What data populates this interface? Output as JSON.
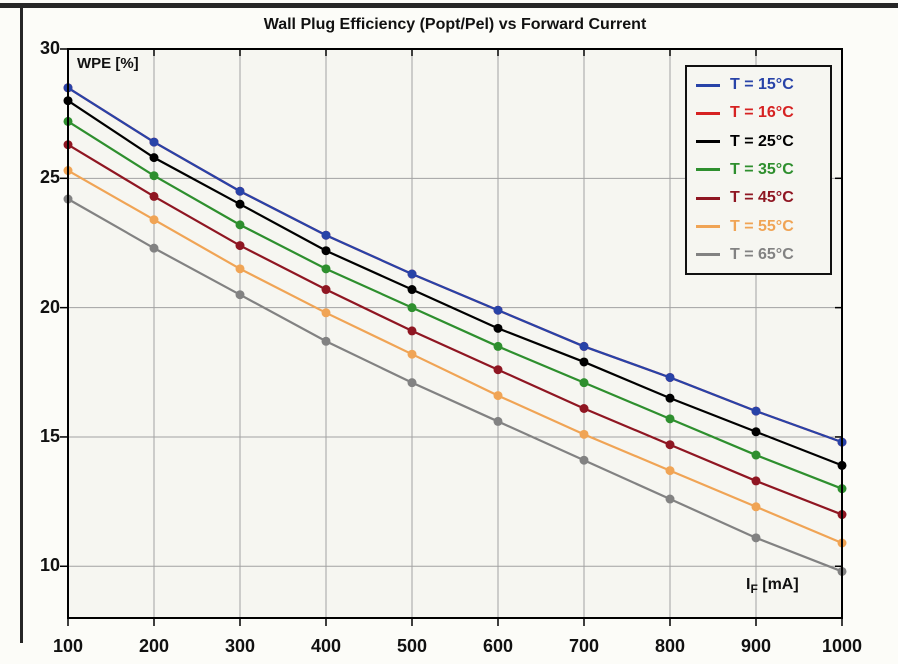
{
  "figure": {
    "title": "Wall Plug Efficiency (Popt/Pel) vs Forward Current",
    "ylabel_inplot": "WPE [%]",
    "xlabel_inplot": {
      "main": "I",
      "sub": "F",
      "unit": " [mA]"
    }
  },
  "chart_data": {
    "type": "line",
    "title": "Wall Plug Efficiency (Popt/Pel) vs Forward Current",
    "xlabel": "IF [mA]",
    "ylabel": "WPE [%]",
    "x": [
      100,
      200,
      300,
      400,
      500,
      600,
      700,
      800,
      900,
      1000
    ],
    "xlim": [
      100,
      1000
    ],
    "ylim": [
      8,
      30
    ],
    "xticks": [
      100,
      200,
      300,
      400,
      500,
      600,
      700,
      800,
      900,
      1000
    ],
    "yticks": [
      10,
      15,
      20,
      25,
      30
    ],
    "grid": true,
    "legend_position": "top-right",
    "plot_bg": "#f6f6f1",
    "grid_color": "#a2a2a2",
    "series": [
      {
        "name": "T = 15°C",
        "temperature_c": 15,
        "color": "#2843a8",
        "values": [
          28.5,
          26.4,
          24.5,
          22.8,
          21.3,
          19.9,
          18.5,
          17.3,
          16.0,
          14.8
        ]
      },
      {
        "name": "T = 16°C",
        "temperature_c": 16,
        "color": "#d62222",
        "values": [
          28.5,
          26.4,
          24.5,
          22.8,
          21.3,
          19.9,
          18.5,
          17.3,
          16.0,
          14.8
        ],
        "note": "curve coincides with T = 15°C and is hidden beneath it"
      },
      {
        "name": "T = 25°C",
        "temperature_c": 25,
        "color": "#000000",
        "values": [
          28.0,
          25.8,
          24.0,
          22.2,
          20.7,
          19.2,
          17.9,
          16.5,
          15.2,
          13.9
        ]
      },
      {
        "name": "T = 35°C",
        "temperature_c": 35,
        "color": "#2e8f2e",
        "values": [
          27.2,
          25.1,
          23.2,
          21.5,
          20.0,
          18.5,
          17.1,
          15.7,
          14.3,
          13.0
        ]
      },
      {
        "name": "T = 45°C",
        "temperature_c": 45,
        "color": "#8f1622",
        "values": [
          26.3,
          24.3,
          22.4,
          20.7,
          19.1,
          17.6,
          16.1,
          14.7,
          13.3,
          12.0
        ]
      },
      {
        "name": "T = 55°C",
        "temperature_c": 55,
        "color": "#f0a455",
        "values": [
          25.3,
          23.4,
          21.5,
          19.8,
          18.2,
          16.6,
          15.1,
          13.7,
          12.3,
          10.9
        ]
      },
      {
        "name": "T = 65°C",
        "temperature_c": 65,
        "color": "#828282",
        "values": [
          24.2,
          22.3,
          20.5,
          18.7,
          17.1,
          15.6,
          14.1,
          12.6,
          11.1,
          9.8
        ]
      }
    ]
  }
}
